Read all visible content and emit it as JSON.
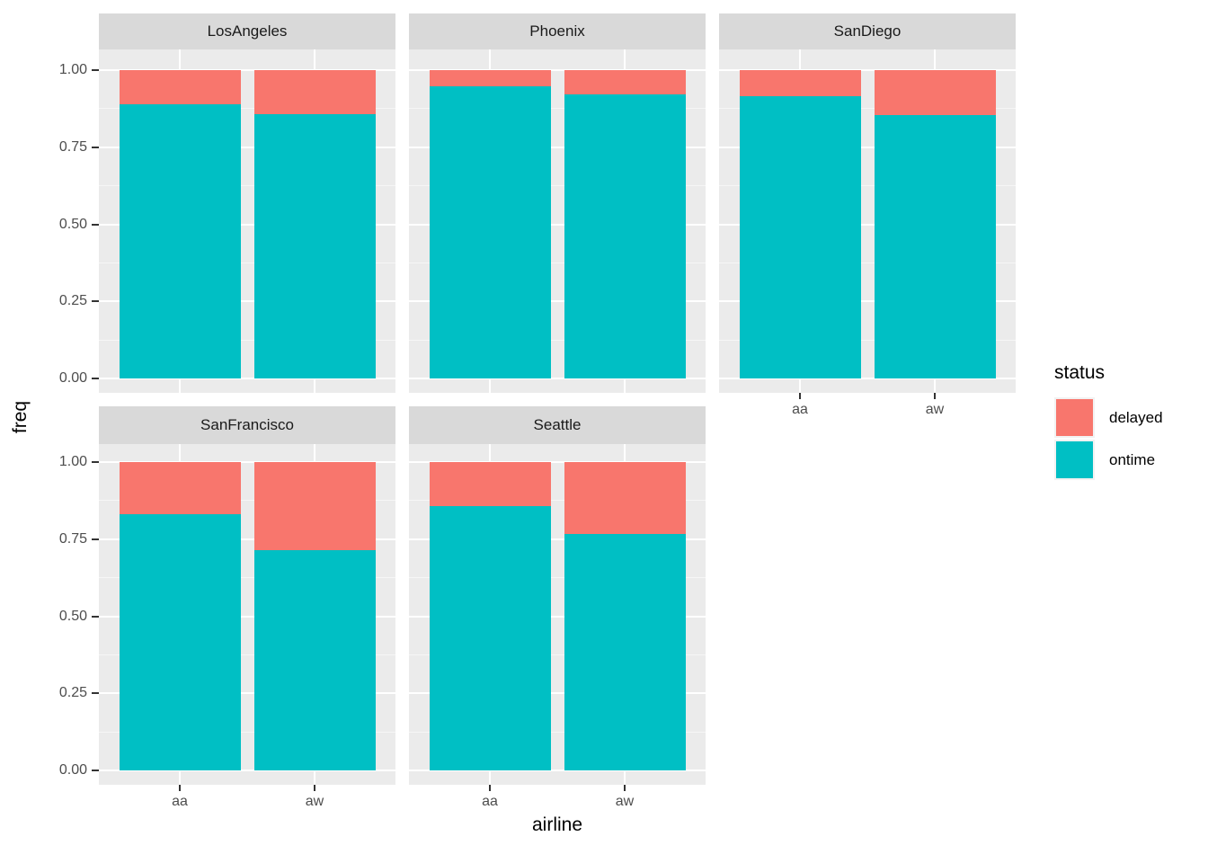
{
  "chart_data": {
    "type": "bar",
    "stacked": true,
    "orientation": "vertical",
    "xlabel": "airline",
    "ylabel": "freq",
    "categories": [
      "aa",
      "aw"
    ],
    "ylim": [
      0,
      1
    ],
    "grid": true,
    "y_ticks": [
      {
        "label": "1.00",
        "value": 1.0
      },
      {
        "label": "0.75",
        "value": 0.75
      },
      {
        "label": "0.50",
        "value": 0.5
      },
      {
        "label": "0.25",
        "value": 0.25
      },
      {
        "label": "0.00",
        "value": 0.0
      }
    ],
    "y_minor_ticks": [
      0.875,
      0.625,
      0.375,
      0.125
    ],
    "legend": {
      "title": "status",
      "position": "right",
      "entries": [
        {
          "label": "delayed",
          "color": "#F8766D"
        },
        {
          "label": "ontime",
          "color": "#00BFC4"
        }
      ]
    },
    "colors": {
      "delayed": "#F8766D",
      "ontime": "#00BFC4"
    },
    "theme_colors": {
      "panel_background": "#EBEBEB",
      "strip_background": "#D9D9D9",
      "grid_major": "#FFFFFF",
      "tick_color": "#333333",
      "tick_label_color": "#4D4D4D"
    },
    "facets": [
      {
        "title": "LosAngeles",
        "row": 0,
        "col": 0,
        "show_y_axis": true,
        "show_x_axis": false,
        "bars": [
          {
            "category": "aa",
            "ontime": 0.889,
            "delayed": 0.111
          },
          {
            "category": "aw",
            "ontime": 0.856,
            "delayed": 0.144
          }
        ]
      },
      {
        "title": "Phoenix",
        "row": 0,
        "col": 1,
        "show_y_axis": false,
        "show_x_axis": false,
        "bars": [
          {
            "category": "aa",
            "ontime": 0.948,
            "delayed": 0.052
          },
          {
            "category": "aw",
            "ontime": 0.921,
            "delayed": 0.079
          }
        ]
      },
      {
        "title": "SanDiego",
        "row": 0,
        "col": 2,
        "show_y_axis": false,
        "show_x_axis": true,
        "bars": [
          {
            "category": "aa",
            "ontime": 0.914,
            "delayed": 0.086
          },
          {
            "category": "aw",
            "ontime": 0.855,
            "delayed": 0.145
          }
        ]
      },
      {
        "title": "SanFrancisco",
        "row": 1,
        "col": 0,
        "show_y_axis": true,
        "show_x_axis": true,
        "bars": [
          {
            "category": "aa",
            "ontime": 0.831,
            "delayed": 0.169
          },
          {
            "category": "aw",
            "ontime": 0.713,
            "delayed": 0.287
          }
        ]
      },
      {
        "title": "Seattle",
        "row": 1,
        "col": 1,
        "show_y_axis": false,
        "show_x_axis": true,
        "bars": [
          {
            "category": "aa",
            "ontime": 0.858,
            "delayed": 0.142
          },
          {
            "category": "aw",
            "ontime": 0.767,
            "delayed": 0.233
          }
        ]
      }
    ]
  }
}
